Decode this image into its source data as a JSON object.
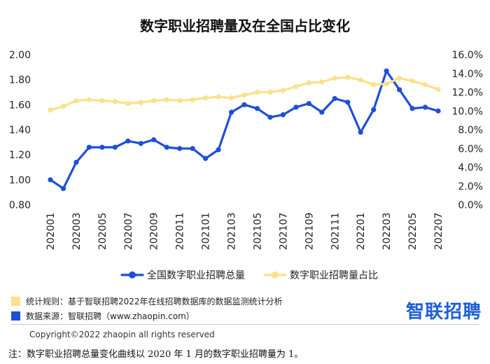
{
  "chart_data": {
    "type": "line",
    "title": "数字职业招聘量及在全国占比变化",
    "categories": [
      "202001",
      "202002",
      "202003",
      "202004",
      "202005",
      "202006",
      "202007",
      "202008",
      "202009",
      "202010",
      "202011",
      "202012",
      "202101",
      "202102",
      "202103",
      "202104",
      "202105",
      "202106",
      "202107",
      "202108",
      "202109",
      "202110",
      "202111",
      "202112",
      "202201",
      "202202",
      "202203",
      "202204",
      "202205",
      "202206",
      "202207"
    ],
    "x_tick_labels": [
      "202001",
      "202003",
      "202005",
      "202007",
      "202009",
      "202011",
      "202101",
      "202103",
      "202105",
      "202107",
      "202109",
      "202111",
      "202201",
      "202203",
      "202205",
      "202207"
    ],
    "y_left": {
      "ylim": [
        0.8,
        2.0
      ],
      "ticks": [
        "0.80",
        "1.00",
        "1.20",
        "1.40",
        "1.60",
        "1.80",
        "2.00"
      ]
    },
    "y_right": {
      "ylim": [
        0,
        16
      ],
      "ticks": [
        "0.0%",
        "2.0%",
        "4.0%",
        "6.0%",
        "8.0%",
        "10.0%",
        "12.0%",
        "14.0%",
        "16.0%"
      ]
    },
    "series": [
      {
        "name": "全国数字职业招聘总量",
        "axis": "left",
        "color": "#1f4fd8",
        "values": [
          1.0,
          0.93,
          1.14,
          1.26,
          1.26,
          1.26,
          1.31,
          1.29,
          1.32,
          1.26,
          1.25,
          1.25,
          1.17,
          1.24,
          1.54,
          1.6,
          1.57,
          1.5,
          1.52,
          1.58,
          1.61,
          1.54,
          1.65,
          1.62,
          1.38,
          1.56,
          1.87,
          1.72,
          1.57,
          1.58,
          1.55
        ]
      },
      {
        "name": "数字职业招聘量占比",
        "axis": "right",
        "color": "#fbe18a",
        "values": [
          10.1,
          10.5,
          11.1,
          11.2,
          11.1,
          11.0,
          10.8,
          10.9,
          11.1,
          11.2,
          11.1,
          11.2,
          11.4,
          11.5,
          11.4,
          11.7,
          12.0,
          12.0,
          12.2,
          12.6,
          13.0,
          13.1,
          13.5,
          13.6,
          13.3,
          12.8,
          12.9,
          13.5,
          13.2,
          12.8,
          12.3
        ]
      }
    ],
    "grid": false,
    "legend_position": "bottom"
  },
  "footer": {
    "rule_label": "统计规则：基于智联招聘2022年在线招聘数据库的数据监测统计分析",
    "source_label": "数据来源：智联招聘（www.zhaopin.com）",
    "rule_color": "#fbe18a",
    "source_color": "#1f4fd8",
    "brand": "智联招聘",
    "copyright": "Copyright©2022 zhaopin all rights reserved",
    "note": "注：数字职业招聘总量变化曲线以 2020 年 1 月的数字职业招聘量为 1。"
  }
}
